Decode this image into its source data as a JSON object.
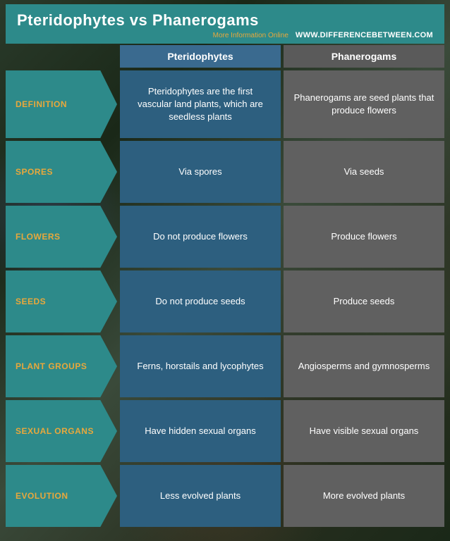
{
  "header": {
    "title": "Pteridophytes vs Phanerogams",
    "more_info": "More Information Online",
    "url": "WWW.DIFFERENCEBETWEEN.COM"
  },
  "columns": {
    "left": "Pteridophytes",
    "right": "Phanerogams"
  },
  "colors": {
    "teal": "#2d8a8a",
    "gold": "#e8a83c",
    "blue_header": "#3a6a8f",
    "gray_header": "#5a5a5a",
    "blue_cell": "#2d5f7f",
    "gray_cell": "#606060",
    "white": "#ffffff"
  },
  "rows": [
    {
      "label": "DEFINITION",
      "left": "Pteridophytes are the first vascular land plants, which are seedless plants",
      "right": "Phanerogams are seed plants that produce flowers",
      "tall": true
    },
    {
      "label": "SPORES",
      "left": "Via spores",
      "right": "Via seeds"
    },
    {
      "label": "FLOWERS",
      "left": "Do not produce flowers",
      "right": "Produce flowers"
    },
    {
      "label": "SEEDS",
      "left": "Do not produce seeds",
      "right": "Produce seeds"
    },
    {
      "label": "PLANT GROUPS",
      "left": "Ferns, horstails and lycophytes",
      "right": "Angiosperms and gymnosperms"
    },
    {
      "label": "SEXUAL ORGANS",
      "left": "Have hidden sexual organs",
      "right": "Have visible sexual organs"
    },
    {
      "label": "EVOLUTION",
      "left": "Less evolved plants",
      "right": "More evolved plants"
    }
  ]
}
